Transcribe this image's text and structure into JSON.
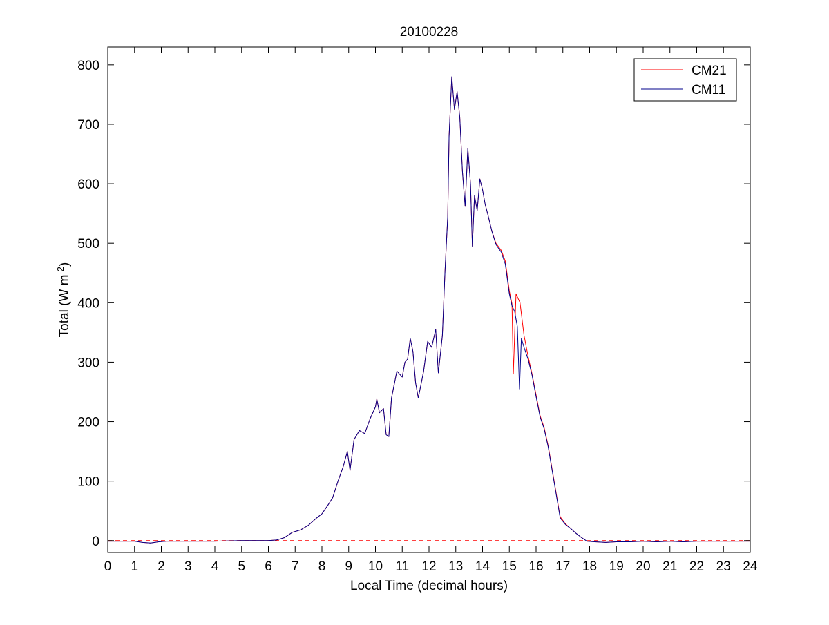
{
  "chart_data": {
    "type": "line",
    "title": "20100228",
    "xlabel": "Local Time (decimal hours)",
    "ylabel_base": "Total (W m",
    "ylabel_sup": "-2",
    "ylabel_end": ")",
    "xlim": [
      0,
      24
    ],
    "ylim": [
      -20,
      830
    ],
    "xticks": [
      0,
      1,
      2,
      3,
      4,
      5,
      6,
      7,
      8,
      9,
      10,
      11,
      12,
      13,
      14,
      15,
      16,
      17,
      18,
      19,
      20,
      21,
      22,
      23,
      24
    ],
    "yticks": [
      0,
      100,
      200,
      300,
      400,
      500,
      600,
      700,
      800
    ],
    "grid": false,
    "legend_position": "top-right",
    "reference_line": {
      "y": 0,
      "color": "#ff0000",
      "style": "dashed"
    },
    "series": [
      {
        "name": "CM21",
        "color": "#ff0000",
        "points": [
          [
            0,
            -1
          ],
          [
            1,
            -1
          ],
          [
            1.3,
            -3
          ],
          [
            1.6,
            -4
          ],
          [
            1.9,
            -2
          ],
          [
            2.2,
            -1
          ],
          [
            3,
            -1
          ],
          [
            4,
            -1
          ],
          [
            5,
            0
          ],
          [
            6,
            0
          ],
          [
            6.3,
            1
          ],
          [
            6.6,
            5
          ],
          [
            6.9,
            14
          ],
          [
            7.2,
            18
          ],
          [
            7.5,
            26
          ],
          [
            7.8,
            38
          ],
          [
            8.0,
            45
          ],
          [
            8.2,
            58
          ],
          [
            8.4,
            72
          ],
          [
            8.6,
            100
          ],
          [
            8.8,
            125
          ],
          [
            8.95,
            150
          ],
          [
            9.05,
            118
          ],
          [
            9.2,
            170
          ],
          [
            9.4,
            185
          ],
          [
            9.6,
            180
          ],
          [
            9.8,
            205
          ],
          [
            10.0,
            225
          ],
          [
            10.05,
            238
          ],
          [
            10.15,
            215
          ],
          [
            10.3,
            222
          ],
          [
            10.4,
            178
          ],
          [
            10.5,
            175
          ],
          [
            10.6,
            240
          ],
          [
            10.8,
            285
          ],
          [
            11.0,
            275
          ],
          [
            11.1,
            300
          ],
          [
            11.2,
            305
          ],
          [
            11.3,
            340
          ],
          [
            11.4,
            318
          ],
          [
            11.5,
            265
          ],
          [
            11.6,
            240
          ],
          [
            11.8,
            285
          ],
          [
            11.95,
            335
          ],
          [
            12.1,
            325
          ],
          [
            12.25,
            355
          ],
          [
            12.35,
            282
          ],
          [
            12.5,
            345
          ],
          [
            12.6,
            455
          ],
          [
            12.7,
            545
          ],
          [
            12.75,
            680
          ],
          [
            12.85,
            780
          ],
          [
            12.95,
            725
          ],
          [
            13.05,
            755
          ],
          [
            13.15,
            712
          ],
          [
            13.25,
            620
          ],
          [
            13.35,
            562
          ],
          [
            13.45,
            660
          ],
          [
            13.55,
            600
          ],
          [
            13.62,
            495
          ],
          [
            13.7,
            580
          ],
          [
            13.8,
            555
          ],
          [
            13.9,
            608
          ],
          [
            14.0,
            590
          ],
          [
            14.1,
            565
          ],
          [
            14.2,
            548
          ],
          [
            14.35,
            520
          ],
          [
            14.5,
            500
          ],
          [
            14.7,
            488
          ],
          [
            14.85,
            470
          ],
          [
            15.0,
            420
          ],
          [
            15.1,
            398
          ],
          [
            15.15,
            280
          ],
          [
            15.25,
            415
          ],
          [
            15.4,
            400
          ],
          [
            15.55,
            345
          ],
          [
            15.7,
            310
          ],
          [
            15.85,
            280
          ],
          [
            16.0,
            245
          ],
          [
            16.15,
            210
          ],
          [
            16.3,
            190
          ],
          [
            16.45,
            160
          ],
          [
            16.6,
            120
          ],
          [
            16.75,
            80
          ],
          [
            16.9,
            40
          ],
          [
            17.1,
            28
          ],
          [
            17.3,
            20
          ],
          [
            17.5,
            12
          ],
          [
            17.7,
            5
          ],
          [
            17.9,
            -1
          ],
          [
            18.2,
            -2
          ],
          [
            18.6,
            -3
          ],
          [
            19.0,
            -2
          ],
          [
            19.5,
            -2
          ],
          [
            20,
            -1
          ],
          [
            20.5,
            -2
          ],
          [
            21,
            -1
          ],
          [
            21.5,
            -2
          ],
          [
            22,
            -1
          ],
          [
            22.5,
            -1
          ],
          [
            23,
            -1
          ],
          [
            24,
            -1
          ]
        ]
      },
      {
        "name": "CM11",
        "color": "#00008b",
        "points": [
          [
            0,
            -1
          ],
          [
            1,
            -1
          ],
          [
            1.3,
            -3
          ],
          [
            1.6,
            -4
          ],
          [
            1.9,
            -2
          ],
          [
            2.2,
            -1
          ],
          [
            3,
            -1
          ],
          [
            4,
            -1
          ],
          [
            5,
            0
          ],
          [
            6,
            0
          ],
          [
            6.3,
            1
          ],
          [
            6.6,
            5
          ],
          [
            6.9,
            14
          ],
          [
            7.2,
            18
          ],
          [
            7.5,
            26
          ],
          [
            7.8,
            38
          ],
          [
            8.0,
            45
          ],
          [
            8.2,
            58
          ],
          [
            8.4,
            72
          ],
          [
            8.6,
            100
          ],
          [
            8.8,
            125
          ],
          [
            8.95,
            150
          ],
          [
            9.05,
            118
          ],
          [
            9.2,
            170
          ],
          [
            9.4,
            185
          ],
          [
            9.6,
            180
          ],
          [
            9.8,
            205
          ],
          [
            10.0,
            225
          ],
          [
            10.05,
            238
          ],
          [
            10.15,
            215
          ],
          [
            10.3,
            222
          ],
          [
            10.4,
            178
          ],
          [
            10.5,
            175
          ],
          [
            10.6,
            240
          ],
          [
            10.8,
            285
          ],
          [
            11.0,
            275
          ],
          [
            11.1,
            300
          ],
          [
            11.2,
            305
          ],
          [
            11.3,
            340
          ],
          [
            11.4,
            318
          ],
          [
            11.5,
            265
          ],
          [
            11.6,
            240
          ],
          [
            11.8,
            285
          ],
          [
            11.95,
            335
          ],
          [
            12.1,
            325
          ],
          [
            12.25,
            355
          ],
          [
            12.35,
            282
          ],
          [
            12.5,
            345
          ],
          [
            12.6,
            455
          ],
          [
            12.7,
            545
          ],
          [
            12.75,
            680
          ],
          [
            12.85,
            780
          ],
          [
            12.95,
            725
          ],
          [
            13.05,
            755
          ],
          [
            13.15,
            712
          ],
          [
            13.25,
            620
          ],
          [
            13.35,
            562
          ],
          [
            13.45,
            660
          ],
          [
            13.55,
            600
          ],
          [
            13.62,
            495
          ],
          [
            13.7,
            580
          ],
          [
            13.8,
            555
          ],
          [
            13.9,
            608
          ],
          [
            14.0,
            590
          ],
          [
            14.1,
            565
          ],
          [
            14.2,
            548
          ],
          [
            14.35,
            520
          ],
          [
            14.5,
            498
          ],
          [
            14.7,
            485
          ],
          [
            14.85,
            465
          ],
          [
            15.0,
            415
          ],
          [
            15.1,
            395
          ],
          [
            15.2,
            385
          ],
          [
            15.3,
            360
          ],
          [
            15.38,
            255
          ],
          [
            15.45,
            340
          ],
          [
            15.55,
            325
          ],
          [
            15.7,
            305
          ],
          [
            15.85,
            278
          ],
          [
            16.0,
            242
          ],
          [
            16.15,
            208
          ],
          [
            16.3,
            188
          ],
          [
            16.45,
            158
          ],
          [
            16.6,
            118
          ],
          [
            16.75,
            78
          ],
          [
            16.9,
            38
          ],
          [
            17.1,
            27
          ],
          [
            17.3,
            20
          ],
          [
            17.5,
            12
          ],
          [
            17.7,
            5
          ],
          [
            17.9,
            -1
          ],
          [
            18.2,
            -2
          ],
          [
            18.6,
            -3
          ],
          [
            19.0,
            -2
          ],
          [
            19.5,
            -2
          ],
          [
            20,
            -1
          ],
          [
            20.5,
            -2
          ],
          [
            21,
            -1
          ],
          [
            21.5,
            -2
          ],
          [
            22,
            -1
          ],
          [
            22.5,
            -1
          ],
          [
            23,
            -1
          ],
          [
            24,
            -1
          ]
        ]
      }
    ]
  }
}
